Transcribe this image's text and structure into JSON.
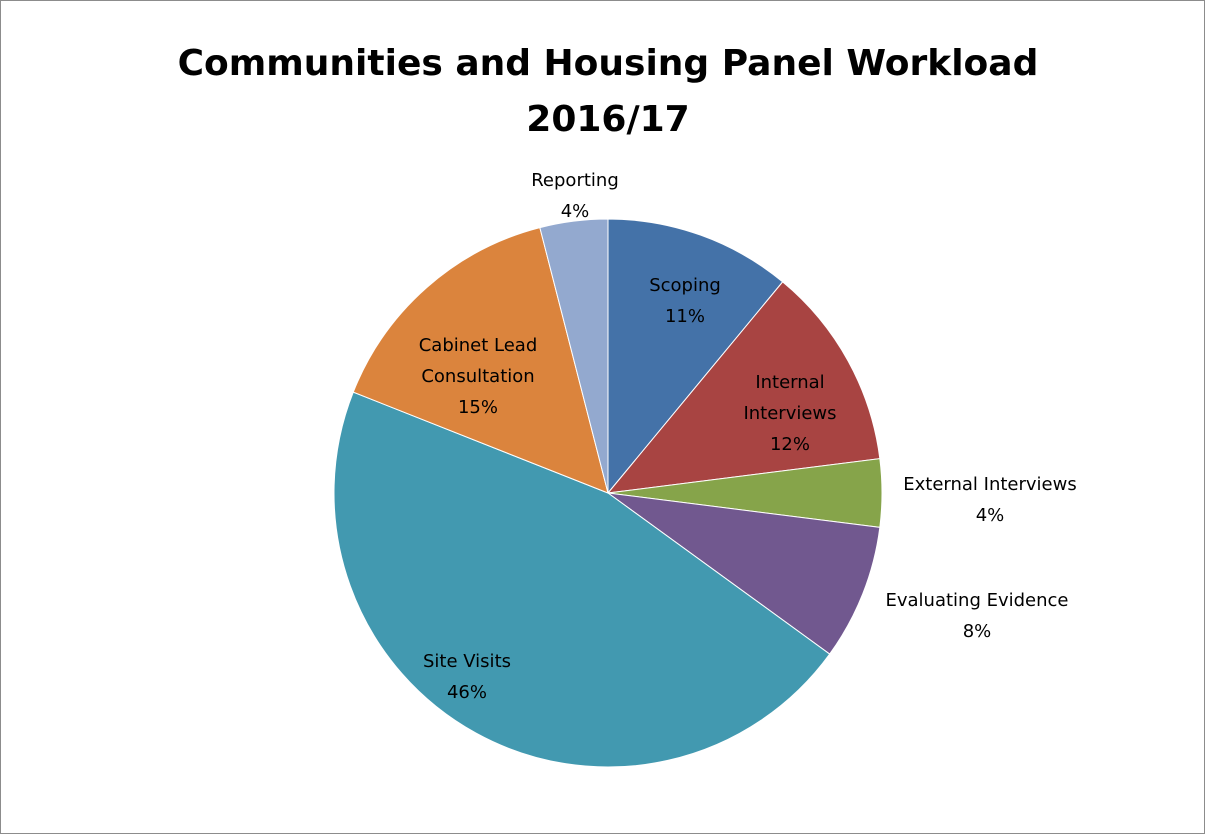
{
  "chart_data": {
    "type": "pie",
    "title_line1": "Communities and Housing Panel Workload",
    "title_line2": "2016/17",
    "slices": [
      {
        "name": "Scoping",
        "value": 11,
        "label": "11%",
        "color": "#4472a8"
      },
      {
        "name": "Internal Interviews",
        "value": 12,
        "label": "12%",
        "color": "#a84442"
      },
      {
        "name": "External Interviews",
        "value": 4,
        "label": "4%",
        "color": "#86a44a"
      },
      {
        "name": "Evaluating Evidence",
        "value": 8,
        "label": "8%",
        "color": "#71588f"
      },
      {
        "name": "Site Visits",
        "value": 46,
        "label": "46%",
        "color": "#4299b0"
      },
      {
        "name": "Cabinet Lead Consultation",
        "value": 15,
        "label": "15%",
        "color": "#db843d"
      },
      {
        "name": "Reporting",
        "value": 4,
        "label": "4%",
        "color": "#93a9cf"
      }
    ],
    "legend": "none",
    "data_labels": "category name and percentage"
  }
}
